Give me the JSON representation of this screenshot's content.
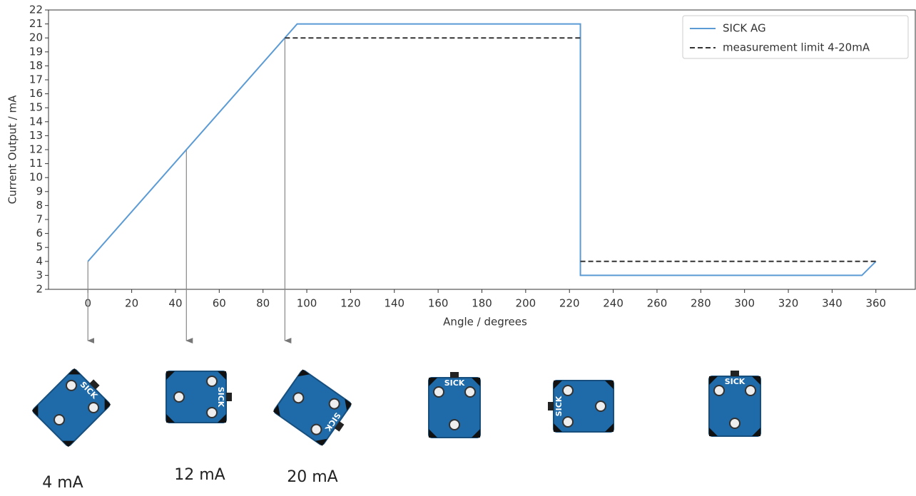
{
  "chart_data": {
    "type": "line",
    "xlabel": "Angle / degrees",
    "ylabel": "Current Output / mA",
    "xlim": [
      -18,
      378
    ],
    "ylim": [
      2,
      22
    ],
    "xticks": [
      0,
      20,
      40,
      60,
      80,
      100,
      120,
      140,
      160,
      180,
      200,
      220,
      240,
      260,
      280,
      300,
      320,
      340,
      360
    ],
    "yticks": [
      2,
      3,
      4,
      5,
      6,
      7,
      8,
      9,
      10,
      11,
      12,
      13,
      14,
      15,
      16,
      17,
      18,
      19,
      20,
      21,
      22
    ],
    "legend": "upper right",
    "series": [
      {
        "name": "SICK AG",
        "color": "#5b9bd5",
        "style": "solid",
        "x": [
          0,
          95.6,
          225,
          225,
          353.6,
          360
        ],
        "values": [
          4,
          21,
          21,
          3,
          3,
          4
        ]
      },
      {
        "name": "measurement limit 4-20mA",
        "color": "#333333",
        "style": "dashed",
        "x": [
          90,
          225,
          225,
          225,
          360
        ],
        "values": [
          20,
          20,
          null,
          4,
          4
        ]
      }
    ],
    "annotations": [
      {
        "x": 0,
        "y": 4,
        "label": "4 mA"
      },
      {
        "x": 45,
        "y": 12,
        "label": "12 mA"
      },
      {
        "x": 90,
        "y": 20,
        "label": "20 mA"
      }
    ]
  },
  "sensor_text": "SICK"
}
